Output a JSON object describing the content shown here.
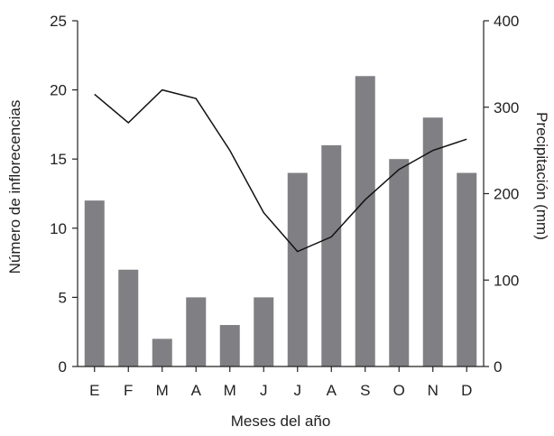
{
  "chart_data": {
    "type": "bar",
    "categories": [
      "E",
      "F",
      "M",
      "A",
      "M",
      "J",
      "J",
      "A",
      "S",
      "O",
      "N",
      "D"
    ],
    "series": [
      {
        "type": "bar",
        "axis": "left",
        "color": "#808084",
        "values": [
          12,
          7,
          2,
          5,
          3,
          5,
          14,
          16,
          21,
          15,
          18,
          14
        ]
      },
      {
        "type": "line",
        "axis": "right",
        "color": "#111111",
        "values": [
          315,
          282,
          320,
          310,
          250,
          178,
          133,
          150,
          193,
          228,
          250,
          263
        ]
      }
    ],
    "xlabel": "Meses del año",
    "ylabel": "Número de inflorecencias",
    "y2label": "Precipitación (mm)",
    "ylim": [
      0,
      25
    ],
    "yticks": [
      0,
      5,
      10,
      15,
      20,
      25
    ],
    "y2lim": [
      0,
      400
    ],
    "y2ticks": [
      0,
      100,
      200,
      300,
      400
    ],
    "grid": false,
    "legend": "none"
  }
}
